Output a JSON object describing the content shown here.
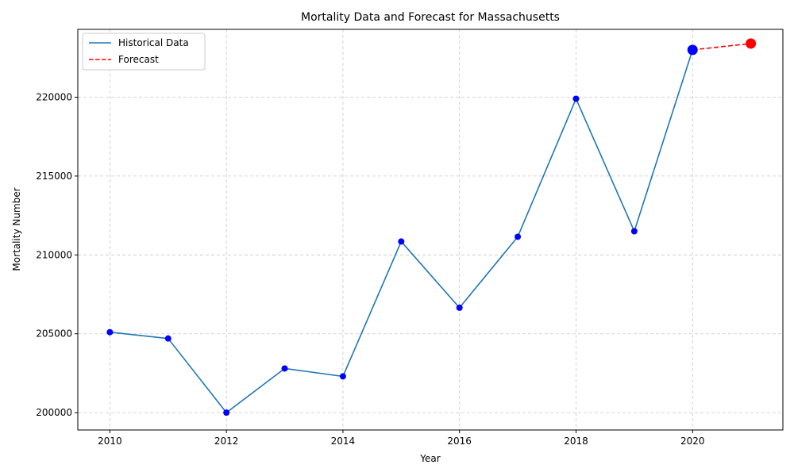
{
  "chart_data": {
    "type": "line",
    "title": "Mortality Data and Forecast for Massachusetts",
    "xlabel": "Year",
    "ylabel": "Mortality Number",
    "xlim": [
      2009.45,
      2021.55
    ],
    "ylim": [
      198900,
      224300
    ],
    "x_ticks": [
      2010,
      2012,
      2014,
      2016,
      2018,
      2020
    ],
    "y_ticks": [
      200000,
      205000,
      210000,
      215000,
      220000
    ],
    "grid": true,
    "grid_style": "dashed",
    "legend_position": "top-left",
    "series": [
      {
        "name": "Historical Data",
        "style": "solid",
        "color": "#1f77b4",
        "marker_color": "#0000ff",
        "x": [
          2010,
          2011,
          2012,
          2013,
          2014,
          2015,
          2016,
          2017,
          2018,
          2019,
          2020
        ],
        "y": [
          205100,
          204700,
          200000,
          202800,
          202300,
          210850,
          206650,
          211150,
          219900,
          211500,
          223000
        ]
      },
      {
        "name": "Forecast",
        "style": "dashed",
        "color": "#ff0000",
        "x": [
          2020,
          2021
        ],
        "y": [
          223000,
          223400
        ]
      }
    ],
    "highlight_points": [
      {
        "x": 2020,
        "y": 223000,
        "color": "#0000ff"
      },
      {
        "x": 2021,
        "y": 223400,
        "color": "#ff0000"
      }
    ]
  }
}
